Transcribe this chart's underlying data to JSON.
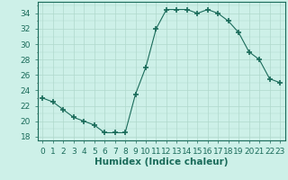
{
  "x": [
    0,
    1,
    2,
    3,
    4,
    5,
    6,
    7,
    8,
    9,
    10,
    11,
    12,
    13,
    14,
    15,
    16,
    17,
    18,
    19,
    20,
    21,
    22,
    23
  ],
  "y": [
    23.0,
    22.5,
    21.5,
    20.5,
    20.0,
    19.5,
    18.5,
    18.5,
    18.5,
    23.5,
    27.0,
    32.0,
    34.5,
    34.5,
    34.5,
    34.0,
    34.5,
    34.0,
    33.0,
    31.5,
    29.0,
    28.0,
    25.5,
    25.0
  ],
  "xlabel": "Humidex (Indice chaleur)",
  "xlim": [
    -0.5,
    23.5
  ],
  "ylim": [
    17.5,
    35.5
  ],
  "yticks": [
    18,
    20,
    22,
    24,
    26,
    28,
    30,
    32,
    34
  ],
  "xticks": [
    0,
    1,
    2,
    3,
    4,
    5,
    6,
    7,
    8,
    9,
    10,
    11,
    12,
    13,
    14,
    15,
    16,
    17,
    18,
    19,
    20,
    21,
    22,
    23
  ],
  "line_color": "#1a6b5a",
  "marker": "+",
  "marker_size": 4,
  "background_color": "#cdf0e8",
  "grid_color": "#b0d8cc",
  "tick_fontsize": 6.5,
  "xlabel_fontsize": 7.5
}
